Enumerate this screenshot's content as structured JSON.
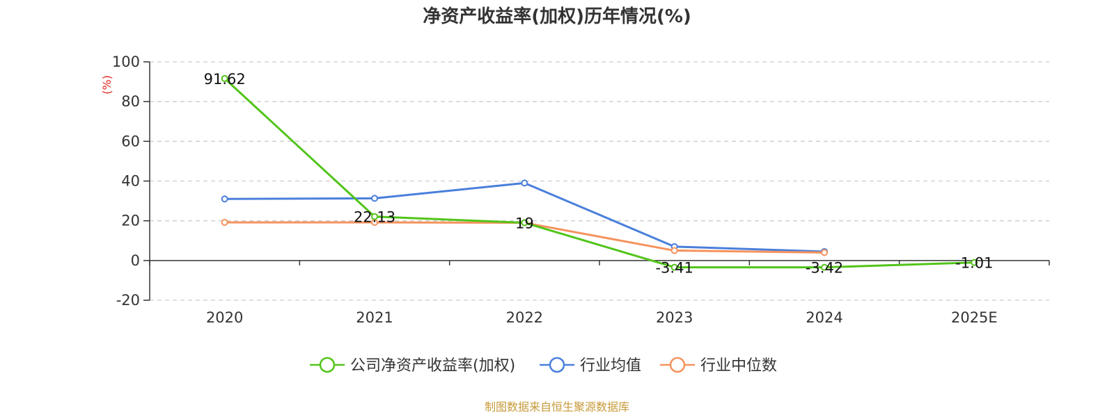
{
  "chart_data": {
    "type": "line",
    "title": "净资产收益率(加权)历年情况(%)",
    "ylabel": "(%)",
    "xlabel": "",
    "categories": [
      "2020",
      "2021",
      "2022",
      "2023",
      "2024",
      "2025E"
    ],
    "ylim": [
      -20,
      100
    ],
    "yticks": [
      -20,
      0,
      20,
      40,
      60,
      80,
      100
    ],
    "grid": true,
    "legend_position": "bottom",
    "series": [
      {
        "name": "公司净资产收益率(加权)",
        "color": "#52c41a",
        "values": [
          91.62,
          22.13,
          19,
          -3.41,
          -3.42,
          -1.01
        ],
        "labels": [
          "91.62",
          "22.13",
          "19",
          "-3.41",
          "-3.42",
          "-1.01"
        ]
      },
      {
        "name": "行业均值",
        "color": "#4a7fdb",
        "values": [
          31,
          31.3,
          39,
          7,
          4.5,
          null
        ]
      },
      {
        "name": "行业中位数",
        "color": "#f5935e",
        "values": [
          19.2,
          19.2,
          19,
          5,
          4,
          null
        ]
      }
    ]
  },
  "source": {
    "text": "制图数据来自恒生聚源数据库",
    "color": "#c79a3a"
  },
  "colors": {
    "axis": "#333333",
    "grid": "#cccccc",
    "ylabel": "#e0261f"
  }
}
